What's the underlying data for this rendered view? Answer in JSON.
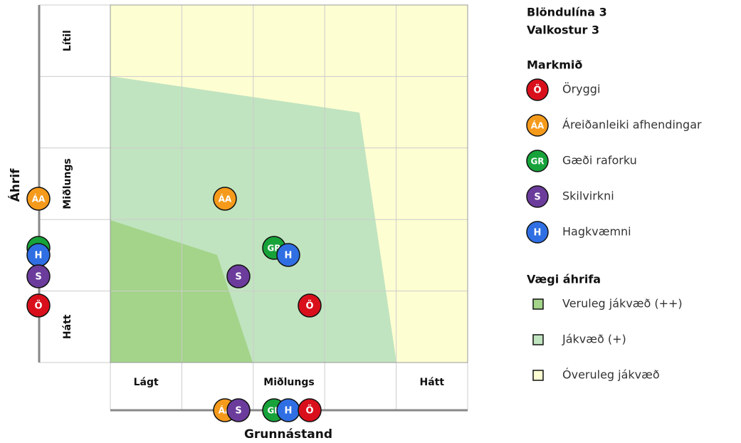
{
  "title_lines": [
    "Blöndulína 3",
    "Valkostur 3"
  ],
  "y_axis_title": "Áhrif",
  "x_axis_title": "Grunnástand",
  "row_labels": [
    "Lítil",
    "Miðlungs",
    "Hátt"
  ],
  "column_labels": [
    "Lágt",
    "Miðlungs",
    "Hátt"
  ],
  "goals": {
    "title": "Markmið",
    "items": [
      {
        "code": "Ö",
        "label": "Öryggi",
        "color": "#d9101c"
      },
      {
        "code": "ÁA",
        "label": "Áreiðanleiki afhendingar",
        "color": "#f59a1b"
      },
      {
        "code": "GR",
        "label": "Gæði raforku",
        "color": "#17a33a"
      },
      {
        "code": "S",
        "label": "Skilvirkni",
        "color": "#6b3c9c"
      },
      {
        "code": "H",
        "label": "Hagkvæmni",
        "color": "#2f6fe3"
      }
    ]
  },
  "weights": {
    "title": "Vægi áhrifa",
    "items": [
      {
        "label": "Veruleg jákvæð (++)",
        "color": "#a3d48a"
      },
      {
        "label": "Jákvæð (+)",
        "color": "#c0e4bf"
      },
      {
        "label": "Óveruleg jákvæð",
        "color": "#fefed3"
      }
    ]
  }
}
